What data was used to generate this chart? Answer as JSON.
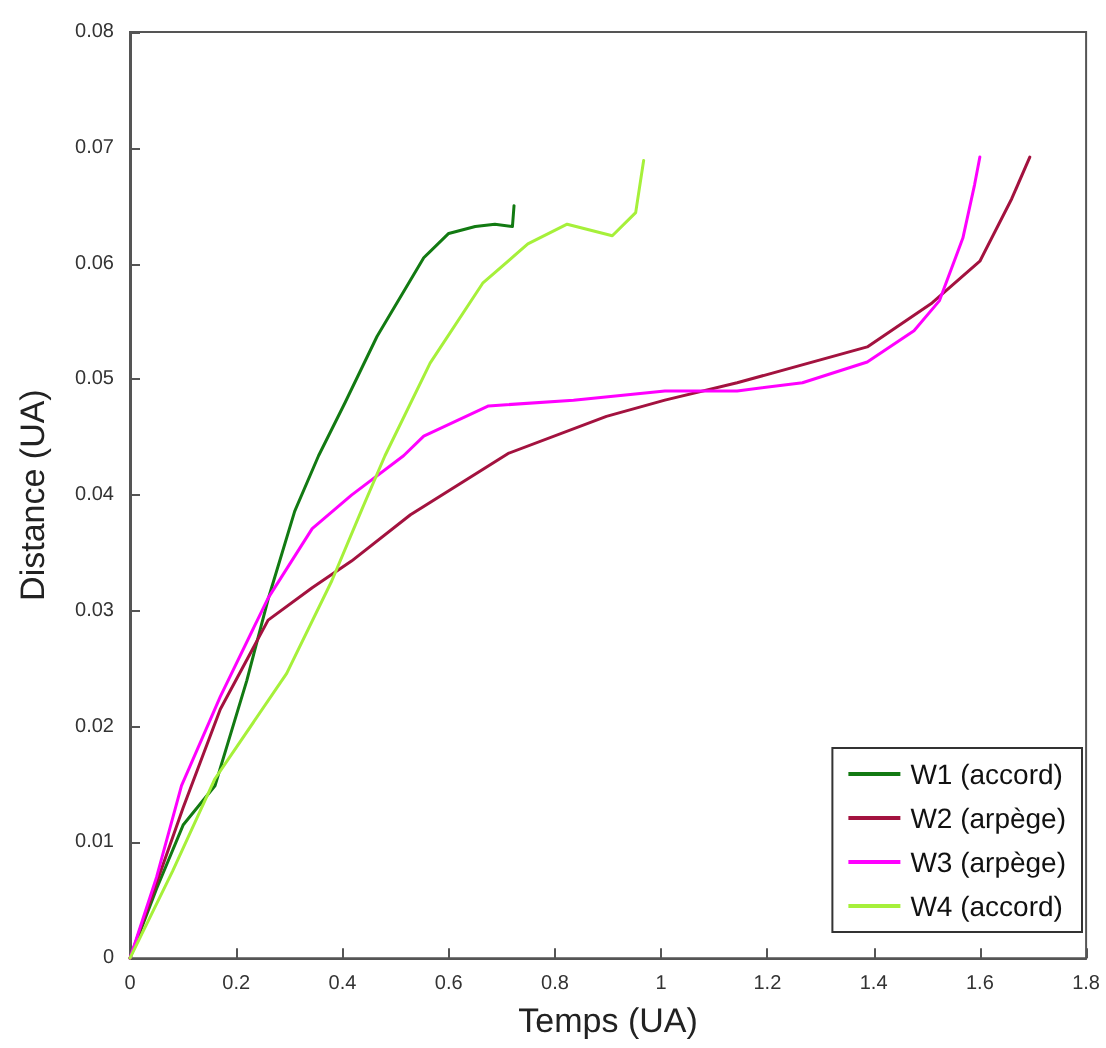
{
  "chart_data": {
    "type": "line",
    "xlabel": "Temps (UA)",
    "ylabel": "Distance (UA)",
    "xlim": [
      0,
      1.8
    ],
    "ylim": [
      0,
      0.08
    ],
    "xticks": [
      0,
      0.2,
      0.4,
      0.6,
      0.8,
      1,
      1.2,
      1.4,
      1.6,
      1.8
    ],
    "yticks": [
      0,
      0.01,
      0.02,
      0.03,
      0.04,
      0.05,
      0.06,
      0.07,
      0.08
    ],
    "grid": false,
    "legend": "bottom right",
    "marker": "none",
    "line_style": "solid",
    "series": [
      {
        "name": "W1 (accord)",
        "color": "#127a12",
        "x": [
          0,
          0.05,
          0.1,
          0.16,
          0.22,
          0.26,
          0.31,
          0.355,
          0.405,
          0.465,
          0.553,
          0.6,
          0.65,
          0.687,
          0.72,
          0.723
        ],
        "values": [
          0,
          0.006,
          0.0115,
          0.0149,
          0.024,
          0.031,
          0.0386,
          0.0434,
          0.048,
          0.0537,
          0.0605,
          0.0626,
          0.0632,
          0.0634,
          0.0632,
          0.065
        ]
      },
      {
        "name": "W2 (arpège)",
        "color": "#a3123f",
        "x": [
          0,
          0.05,
          0.1,
          0.17,
          0.26,
          0.343,
          0.417,
          0.528,
          0.712,
          0.897,
          1.007,
          1.143,
          1.388,
          1.51,
          1.6,
          1.66,
          1.694
        ],
        "values": [
          0,
          0.0065,
          0.013,
          0.0215,
          0.0292,
          0.032,
          0.0343,
          0.0383,
          0.0436,
          0.0468,
          0.0482,
          0.0497,
          0.0528,
          0.0566,
          0.0602,
          0.0656,
          0.0692
        ]
      },
      {
        "name": "W3 (arpège)",
        "color": "#ff00ff",
        "x": [
          0,
          0.05,
          0.097,
          0.17,
          0.26,
          0.343,
          0.417,
          0.515,
          0.553,
          0.675,
          0.835,
          1.007,
          1.143,
          1.266,
          1.388,
          1.476,
          1.524,
          1.568,
          1.59,
          1.6
        ],
        "values": [
          0,
          0.007,
          0.0149,
          0.0226,
          0.0311,
          0.0371,
          0.04,
          0.0434,
          0.0451,
          0.0477,
          0.0482,
          0.049,
          0.049,
          0.0497,
          0.0515,
          0.0542,
          0.0568,
          0.0622,
          0.0668,
          0.0692
        ]
      },
      {
        "name": "W4 (accord)",
        "color": "#a6f03a",
        "x": [
          0,
          0.08,
          0.16,
          0.295,
          0.38,
          0.435,
          0.48,
          0.565,
          0.664,
          0.749,
          0.823,
          0.908,
          0.952,
          0.967
        ],
        "values": [
          0,
          0.0075,
          0.0155,
          0.0246,
          0.0326,
          0.0386,
          0.0434,
          0.0514,
          0.0583,
          0.0617,
          0.0634,
          0.0624,
          0.0644,
          0.0689
        ]
      }
    ]
  }
}
